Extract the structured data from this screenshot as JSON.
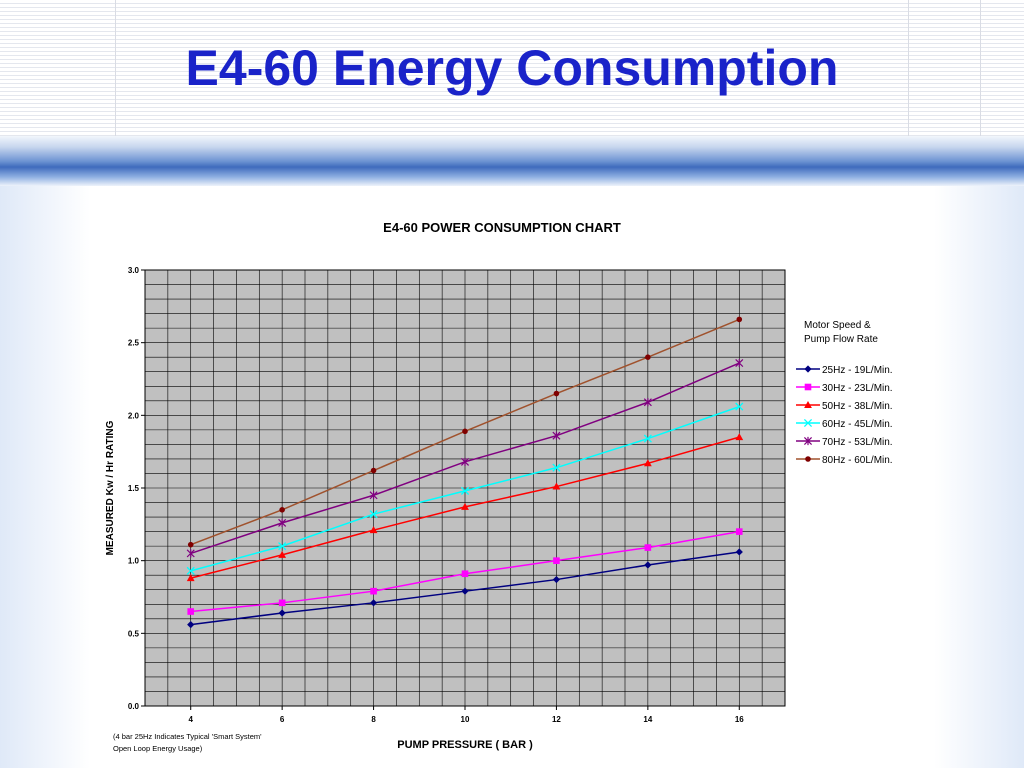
{
  "slide": {
    "title": "E4-60 Energy Consumption"
  },
  "chart_data": {
    "type": "line",
    "title": "E4-60 POWER CONSUMPTION CHART",
    "xlabel": "PUMP PRESSURE ( BAR )",
    "ylabel": "MEASURED Kw / Hr RATING",
    "x": [
      4,
      6,
      8,
      10,
      12,
      14,
      16
    ],
    "x_tick_labels": [
      "4",
      "6",
      "8",
      "10",
      "12",
      "14",
      "16"
    ],
    "y_tick_labels": [
      "0.0",
      "0.5",
      "1.0",
      "1.5",
      "2.0",
      "2.5",
      "3.0"
    ],
    "xlim": [
      3,
      17
    ],
    "ylim": [
      0,
      3
    ],
    "grid": true,
    "legend_title": [
      "Motor Speed &",
      "Pump Flow Rate"
    ],
    "legend_position": "right",
    "note": [
      "(4 bar 25Hz Indicates Typical 'Smart System'",
      "Open Loop Energy Usage)"
    ],
    "series": [
      {
        "name": "25Hz - 19L/Min.",
        "color": "#000080",
        "marker": "diamond",
        "values": [
          0.56,
          0.64,
          0.71,
          0.79,
          0.87,
          0.97,
          1.06
        ]
      },
      {
        "name": "30Hz - 23L/Min.",
        "color": "#ff00ff",
        "marker": "square",
        "values": [
          0.65,
          0.71,
          0.79,
          0.91,
          1.0,
          1.09,
          1.2
        ]
      },
      {
        "name": "50Hz - 38L/Min.",
        "color": "#ff0000",
        "marker": "triangle",
        "values": [
          0.88,
          1.04,
          1.21,
          1.37,
          1.51,
          1.67,
          1.85
        ]
      },
      {
        "name": "60Hz - 45L/Min.",
        "color": "#00ffff",
        "marker": "x",
        "values": [
          0.93,
          1.1,
          1.32,
          1.48,
          1.64,
          1.84,
          2.06
        ]
      },
      {
        "name": "70Hz - 53L/Min.",
        "color": "#800080",
        "marker": "star",
        "values": [
          1.05,
          1.26,
          1.45,
          1.68,
          1.86,
          2.09,
          2.36
        ]
      },
      {
        "name": "80Hz - 60L/Min.",
        "color": "#800000",
        "marker": "circle",
        "line_color": "#a0522d",
        "values": [
          1.11,
          1.35,
          1.62,
          1.89,
          2.15,
          2.4,
          2.66
        ]
      }
    ]
  }
}
